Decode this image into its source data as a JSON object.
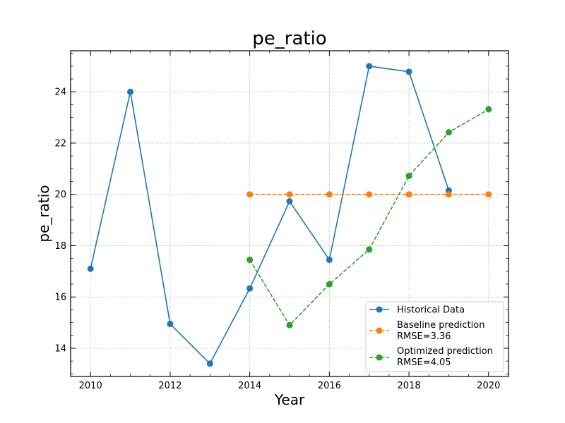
{
  "chart_data": {
    "type": "line",
    "title": "pe_ratio",
    "xlabel": "Year",
    "ylabel": "pe_ratio",
    "xlim": [
      2009.5,
      2020.5
    ],
    "ylim": [
      12.9,
      25.6
    ],
    "xticks": [
      2010,
      2012,
      2014,
      2016,
      2018,
      2020
    ],
    "yticks": [
      14,
      16,
      18,
      20,
      22,
      24
    ],
    "grid": true,
    "legend_position": "lower-right",
    "series": [
      {
        "name": "Historical Data",
        "color": "#1f77b4",
        "dash": "solid",
        "points": [
          {
            "x": 2010,
            "y": 17.1
          },
          {
            "x": 2011,
            "y": 24.0
          },
          {
            "x": 2012,
            "y": 14.95
          },
          {
            "x": 2013,
            "y": 13.4
          },
          {
            "x": 2014,
            "y": 16.33
          },
          {
            "x": 2015,
            "y": 19.73
          },
          {
            "x": 2016,
            "y": 17.45
          },
          {
            "x": 2017,
            "y": 25.0
          },
          {
            "x": 2018,
            "y": 24.78
          },
          {
            "x": 2019,
            "y": 20.15
          }
        ]
      },
      {
        "name": "Baseline prediction",
        "name_line2": "RMSE=3.36",
        "color": "#ff7f0e",
        "dash": "dashed",
        "points": [
          {
            "x": 2014,
            "y": 20.0
          },
          {
            "x": 2015,
            "y": 20.0
          },
          {
            "x": 2016,
            "y": 20.0
          },
          {
            "x": 2017,
            "y": 20.0
          },
          {
            "x": 2018,
            "y": 20.0
          },
          {
            "x": 2019,
            "y": 20.0
          },
          {
            "x": 2020,
            "y": 20.0
          }
        ]
      },
      {
        "name": "Optimized prediction",
        "name_line2": "RMSE=4.05",
        "color": "#2ca02c",
        "dash": "dashed",
        "points": [
          {
            "x": 2014,
            "y": 17.45
          },
          {
            "x": 2015,
            "y": 14.9
          },
          {
            "x": 2016,
            "y": 16.5
          },
          {
            "x": 2017,
            "y": 17.85
          },
          {
            "x": 2018,
            "y": 20.72
          },
          {
            "x": 2019,
            "y": 22.42
          },
          {
            "x": 2020,
            "y": 23.32
          }
        ]
      }
    ]
  }
}
